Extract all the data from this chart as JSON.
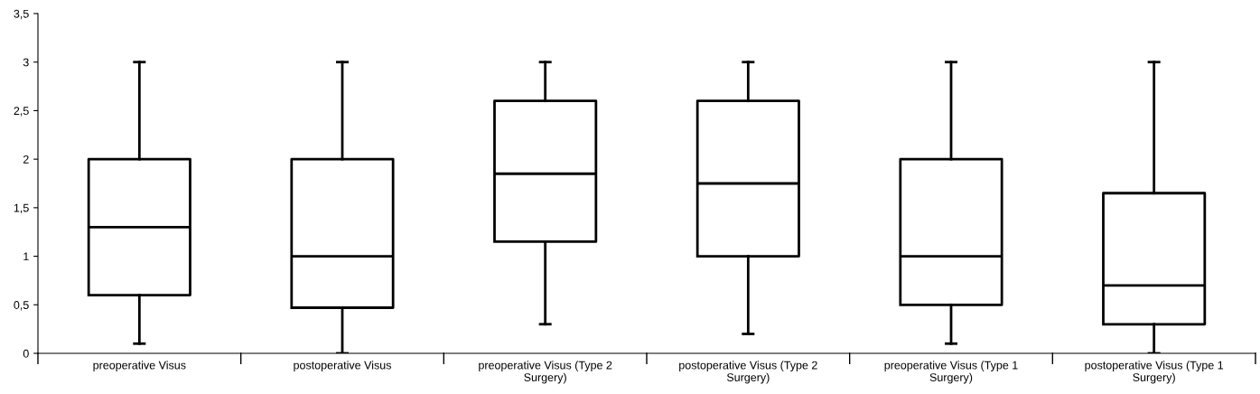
{
  "chart_data": {
    "type": "box",
    "categories": [
      "preoperative Visus",
      "postoperative Visus",
      "preoperative Visus (Type 2\nSurgery)",
      "postoperative Visus (Type 2\nSurgery)",
      "preoperative Visus (Type 1\nSurgery)",
      "postoperative Visus (Type 1\nSurgery)"
    ],
    "boxes": [
      {
        "low": 0.1,
        "q1": 0.6,
        "median": 1.3,
        "q3": 2.0,
        "high": 3.0
      },
      {
        "low": 0.0,
        "q1": 0.47,
        "median": 1.0,
        "q3": 2.0,
        "high": 3.0
      },
      {
        "low": 0.3,
        "q1": 1.15,
        "median": 1.85,
        "q3": 2.6,
        "high": 3.0
      },
      {
        "low": 0.2,
        "q1": 1.0,
        "median": 1.75,
        "q3": 2.6,
        "high": 3.0
      },
      {
        "low": 0.1,
        "q1": 0.5,
        "median": 1.0,
        "q3": 2.0,
        "high": 3.0
      },
      {
        "low": 0.0,
        "q1": 0.3,
        "median": 0.7,
        "q3": 1.65,
        "high": 3.0
      }
    ],
    "color": "#000000",
    "ylim": [
      0,
      3.5
    ],
    "yticks": [
      0,
      {
        "value": 0.5,
        "label": "0,5"
      },
      1,
      {
        "value": 1.5,
        "label": "1,5"
      },
      2,
      {
        "value": 2.5,
        "label": "2,5"
      },
      3,
      {
        "value": 3.5,
        "label": "3,5"
      }
    ],
    "grid": false,
    "legend": false
  }
}
